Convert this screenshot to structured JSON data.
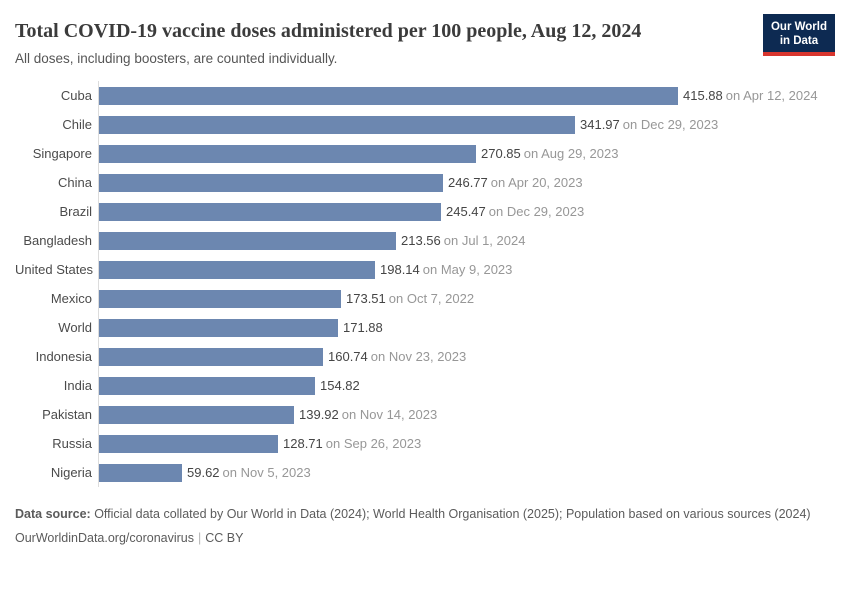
{
  "header": {
    "title": "Total COVID-19 vaccine doses administered per 100 people, Aug 12, 2024",
    "subtitle": "All doses, including boosters, are counted individually.",
    "logo": {
      "line1": "Our World",
      "line2": "in Data"
    }
  },
  "chart_data": {
    "type": "bar",
    "orientation": "horizontal",
    "title": "Total COVID-19 vaccine doses administered per 100 people, Aug 12, 2024",
    "xlabel": "",
    "ylabel": "",
    "xlim": [
      0,
      415.88
    ],
    "grid": false,
    "legend": false,
    "bar_color": "#6c87b0",
    "categories": [
      "Cuba",
      "Chile",
      "Singapore",
      "China",
      "Brazil",
      "Bangladesh",
      "United States",
      "Mexico",
      "World",
      "Indonesia",
      "India",
      "Pakistan",
      "Russia",
      "Nigeria"
    ],
    "values": [
      415.88,
      341.97,
      270.85,
      246.77,
      245.47,
      213.56,
      198.14,
      173.51,
      171.88,
      160.74,
      154.82,
      139.92,
      128.71,
      59.62
    ],
    "value_labels": [
      "415.88",
      "341.97",
      "270.85",
      "246.77",
      "245.47",
      "213.56",
      "198.14",
      "173.51",
      "171.88",
      "160.74",
      "154.82",
      "139.92",
      "128.71",
      "59.62"
    ],
    "date_labels": [
      "on Apr 12, 2024",
      "on Dec 29, 2023",
      "on Aug 29, 2023",
      "on Apr 20, 2023",
      "on Dec 29, 2023",
      "on Jul 1, 2024",
      "on May 9, 2023",
      "on Oct 7, 2022",
      "",
      "on Nov 23, 2023",
      "",
      "on Nov 14, 2023",
      "on Sep 26, 2023",
      "on Nov 5, 2023"
    ]
  },
  "footer": {
    "data_source_label": "Data source:",
    "data_source_text": " Official data collated by Our World in Data (2024); World Health Organisation (2025); Population based on various sources (2024)",
    "link": "OurWorldinData.org/coronavirus",
    "separator": "|",
    "license": "CC BY"
  }
}
